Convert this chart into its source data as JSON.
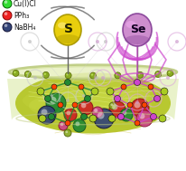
{
  "legend_items": [
    {
      "label": "Cu(I)Cl",
      "color": "#33dd33",
      "border": "#006600"
    },
    {
      "label": "PPh₃",
      "color": "#ee2222",
      "border": "#880000"
    },
    {
      "label": "NaBH₄",
      "color": "#334477",
      "border": "#111133"
    }
  ],
  "bg_color": "#ffffff",
  "s_ball_color": "#e8cc00",
  "s_ball_edge": "#aa9900",
  "se_ball_color": "#cc88cc",
  "se_ball_edge": "#884499",
  "s_label": "S",
  "se_label": "Se",
  "figsize": [
    2.07,
    1.89
  ],
  "dpi": 100
}
